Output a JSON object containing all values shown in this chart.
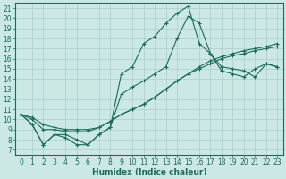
{
  "xlabel": "Humidex (Indice chaleur)",
  "xlim": [
    -0.5,
    23.5
  ],
  "ylim": [
    6.5,
    21.5
  ],
  "xticks": [
    0,
    1,
    2,
    3,
    4,
    5,
    6,
    7,
    8,
    9,
    10,
    11,
    12,
    13,
    14,
    15,
    16,
    17,
    18,
    19,
    20,
    21,
    22,
    23
  ],
  "yticks": [
    7,
    8,
    9,
    10,
    11,
    12,
    13,
    14,
    15,
    16,
    17,
    18,
    19,
    20,
    21
  ],
  "line_color": "#1a6b5a",
  "bg_color": "#cce8e4",
  "grid_color": "#aaceca",
  "series": [
    [
      10.5,
      9.5,
      7.5,
      8.5,
      8.2,
      7.5,
      7.5,
      8.5,
      9.2,
      14.5,
      15.2,
      17.5,
      18.2,
      19.5,
      20.5,
      21.2,
      17.5,
      16.5,
      15.2,
      15.0,
      14.8,
      14.2,
      15.5,
      15.2
    ],
    [
      10.5,
      9.5,
      7.5,
      8.5,
      8.5,
      8.0,
      7.5,
      8.5,
      9.2,
      12.5,
      13.2,
      13.8,
      14.5,
      15.2,
      18.0,
      20.2,
      19.5,
      16.5,
      14.8,
      14.5,
      14.2,
      15.0,
      15.5,
      15.2
    ],
    [
      10.5,
      10.0,
      9.0,
      9.0,
      8.8,
      8.8,
      8.8,
      9.2,
      9.8,
      10.5,
      11.0,
      11.5,
      12.2,
      13.0,
      13.8,
      14.5,
      15.2,
      15.8,
      16.2,
      16.5,
      16.8,
      17.0,
      17.2,
      17.5
    ],
    [
      10.5,
      10.2,
      9.5,
      9.2,
      9.0,
      9.0,
      9.0,
      9.2,
      9.8,
      10.5,
      11.0,
      11.5,
      12.2,
      13.0,
      13.8,
      14.5,
      15.0,
      15.5,
      16.0,
      16.3,
      16.5,
      16.8,
      17.0,
      17.2
    ]
  ],
  "tick_fontsize": 5.5,
  "xlabel_fontsize": 6.5
}
